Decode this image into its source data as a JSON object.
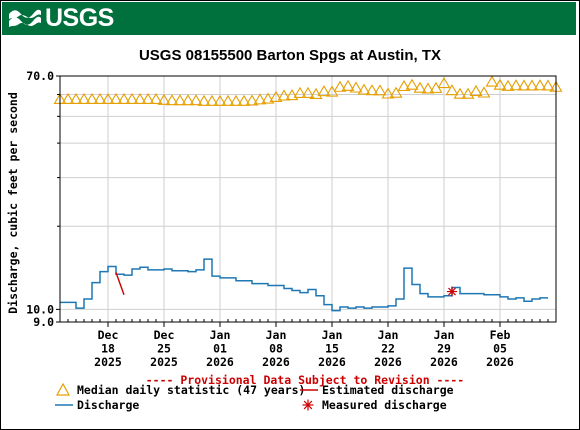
{
  "header": {
    "agency": "USGS",
    "logo_icon": "usgs-wave-logo-icon",
    "banner_color": "#00703c"
  },
  "chart_data": {
    "type": "line",
    "title": "USGS 08155500 Barton Spgs at Austin, TX",
    "ylabel": "Discharge, cubic feet per second",
    "xlabel": "",
    "yscale": "log",
    "ylim": [
      9.0,
      70.0
    ],
    "y_ticks": [
      "70.0",
      "10.0",
      "9.0"
    ],
    "y_tick_values": [
      70.0,
      10.0,
      9.0
    ],
    "xlim": [
      "2025-12-12",
      "2026-02-12"
    ],
    "x_ticks": [
      {
        "date": "2025-12-18",
        "label": [
          "Dec",
          "18",
          "2025"
        ]
      },
      {
        "date": "2025-12-25",
        "label": [
          "Dec",
          "25",
          "2025"
        ]
      },
      {
        "date": "2026-01-01",
        "label": [
          "Jan",
          "01",
          "2026"
        ]
      },
      {
        "date": "2026-01-08",
        "label": [
          "Jan",
          "08",
          "2026"
        ]
      },
      {
        "date": "2026-01-15",
        "label": [
          "Jan",
          "15",
          "2026"
        ]
      },
      {
        "date": "2026-01-22",
        "label": [
          "Jan",
          "22",
          "2026"
        ]
      },
      {
        "date": "2026-01-29",
        "label": [
          "Jan",
          "29",
          "2026"
        ]
      },
      {
        "date": "2026-02-05",
        "label": [
          "Feb",
          "05",
          "2026"
        ]
      }
    ],
    "grid": true,
    "provisional_note": "---- Provisional Data Subject to Revision ----",
    "colors": {
      "discharge": "#1f77b4",
      "median": "#e69f00",
      "estimated": "#cc0000",
      "measured": "#cc0000",
      "note": "#cc0000",
      "grid": "#cfcfcf"
    },
    "legend": [
      {
        "symbol": "triangle",
        "label": "Median daily statistic (47 years)"
      },
      {
        "symbol": "line",
        "label": "Estimated discharge"
      },
      {
        "symbol": "line",
        "label": "Discharge"
      },
      {
        "symbol": "asterisk",
        "label": "Measured discharge"
      }
    ],
    "series": [
      {
        "name": "Median daily statistic (47 years)",
        "marker": "triangle",
        "x": [
          "2025-12-12",
          "2025-12-13",
          "2025-12-14",
          "2025-12-15",
          "2025-12-16",
          "2025-12-17",
          "2025-12-18",
          "2025-12-19",
          "2025-12-20",
          "2025-12-21",
          "2025-12-22",
          "2025-12-23",
          "2025-12-24",
          "2025-12-25",
          "2025-12-26",
          "2025-12-27",
          "2025-12-28",
          "2025-12-29",
          "2025-12-30",
          "2025-12-31",
          "2026-01-01",
          "2026-01-02",
          "2026-01-03",
          "2026-01-04",
          "2026-01-05",
          "2026-01-06",
          "2026-01-07",
          "2026-01-08",
          "2026-01-09",
          "2026-01-10",
          "2026-01-11",
          "2026-01-12",
          "2026-01-13",
          "2026-01-14",
          "2026-01-15",
          "2026-01-16",
          "2026-01-17",
          "2026-01-18",
          "2026-01-19",
          "2026-01-20",
          "2026-01-21",
          "2026-01-22",
          "2026-01-23",
          "2026-01-24",
          "2026-01-25",
          "2026-01-26",
          "2026-01-27",
          "2026-01-28",
          "2026-01-29",
          "2026-01-30",
          "2026-01-31",
          "2026-02-01",
          "2026-02-02",
          "2026-02-03",
          "2026-02-04",
          "2026-02-05",
          "2026-02-06",
          "2026-02-07",
          "2026-02-08",
          "2026-02-09",
          "2026-02-10",
          "2026-02-11",
          "2026-02-12"
        ],
        "values": [
          57.8,
          57.8,
          57.8,
          57.8,
          57.8,
          57.8,
          57.8,
          57.8,
          57.8,
          57.8,
          57.8,
          57.8,
          57.8,
          57.4,
          57.2,
          57.2,
          57.2,
          57.2,
          56.9,
          56.9,
          56.9,
          56.9,
          56.9,
          56.9,
          57.1,
          57.6,
          58.0,
          58.8,
          59.5,
          59.7,
          60.8,
          60.8,
          60.3,
          61.7,
          61.5,
          64.0,
          64.5,
          63.6,
          62.5,
          62.2,
          62.1,
          60.5,
          60.9,
          64.4,
          65.1,
          63.5,
          63.1,
          63.4,
          66.0,
          62.2,
          60.4,
          60.4,
          61.8,
          61.0,
          66.8,
          65.1,
          64.5,
          64.8,
          64.7,
          64.7,
          64.8,
          64.7,
          64.0
        ]
      },
      {
        "name": "Discharge",
        "x": [
          "2025-12-12",
          "2025-12-13",
          "2025-12-14",
          "2025-12-15",
          "2025-12-16",
          "2025-12-17",
          "2025-12-18",
          "2025-12-19",
          "2025-12-20",
          "2025-12-21",
          "2025-12-22",
          "2025-12-23",
          "2025-12-24",
          "2025-12-25",
          "2025-12-26",
          "2025-12-27",
          "2025-12-28",
          "2025-12-29",
          "2025-12-30",
          "2025-12-31",
          "2026-01-01",
          "2026-01-02",
          "2026-01-03",
          "2026-01-04",
          "2026-01-05",
          "2026-01-06",
          "2026-01-07",
          "2026-01-08",
          "2026-01-09",
          "2026-01-10",
          "2026-01-11",
          "2026-01-12",
          "2026-01-13",
          "2026-01-14",
          "2026-01-15",
          "2026-01-16",
          "2026-01-17",
          "2026-01-18",
          "2026-01-19",
          "2026-01-20",
          "2026-01-21",
          "2026-01-22",
          "2026-01-23",
          "2026-01-24",
          "2026-01-25",
          "2026-01-26",
          "2026-01-27",
          "2026-01-28",
          "2026-01-29",
          "2026-01-30",
          "2026-01-31",
          "2026-02-01",
          "2026-02-02",
          "2026-02-03",
          "2026-02-04",
          "2026-02-05",
          "2026-02-06",
          "2026-02-07",
          "2026-02-08",
          "2026-02-09",
          "2026-02-10"
        ],
        "values": [
          10.6,
          10.6,
          10.1,
          10.9,
          12.5,
          13.7,
          14.3,
          13.4,
          13.3,
          14.0,
          14.2,
          13.9,
          13.9,
          14.0,
          13.8,
          13.8,
          13.7,
          13.9,
          15.2,
          13.2,
          13.0,
          13.0,
          12.7,
          12.7,
          12.4,
          12.4,
          12.2,
          12.2,
          11.9,
          11.7,
          11.5,
          11.8,
          11.2,
          10.4,
          9.9,
          10.2,
          10.1,
          10.2,
          10.1,
          10.2,
          10.2,
          10.3,
          10.9,
          14.1,
          12.3,
          11.4,
          11.1,
          11.1,
          11.2,
          12.0,
          11.4,
          11.4,
          11.4,
          11.3,
          11.3,
          11.1,
          10.9,
          11.0,
          10.7,
          10.9,
          11.0
        ]
      },
      {
        "name": "Estimated discharge",
        "x": [
          "2025-12-19",
          "2025-12-20"
        ],
        "values": [
          13.6,
          11.3
        ]
      },
      {
        "name": "Measured discharge",
        "marker": "asterisk",
        "x": [
          "2026-01-30"
        ],
        "values": [
          11.6
        ]
      }
    ]
  }
}
